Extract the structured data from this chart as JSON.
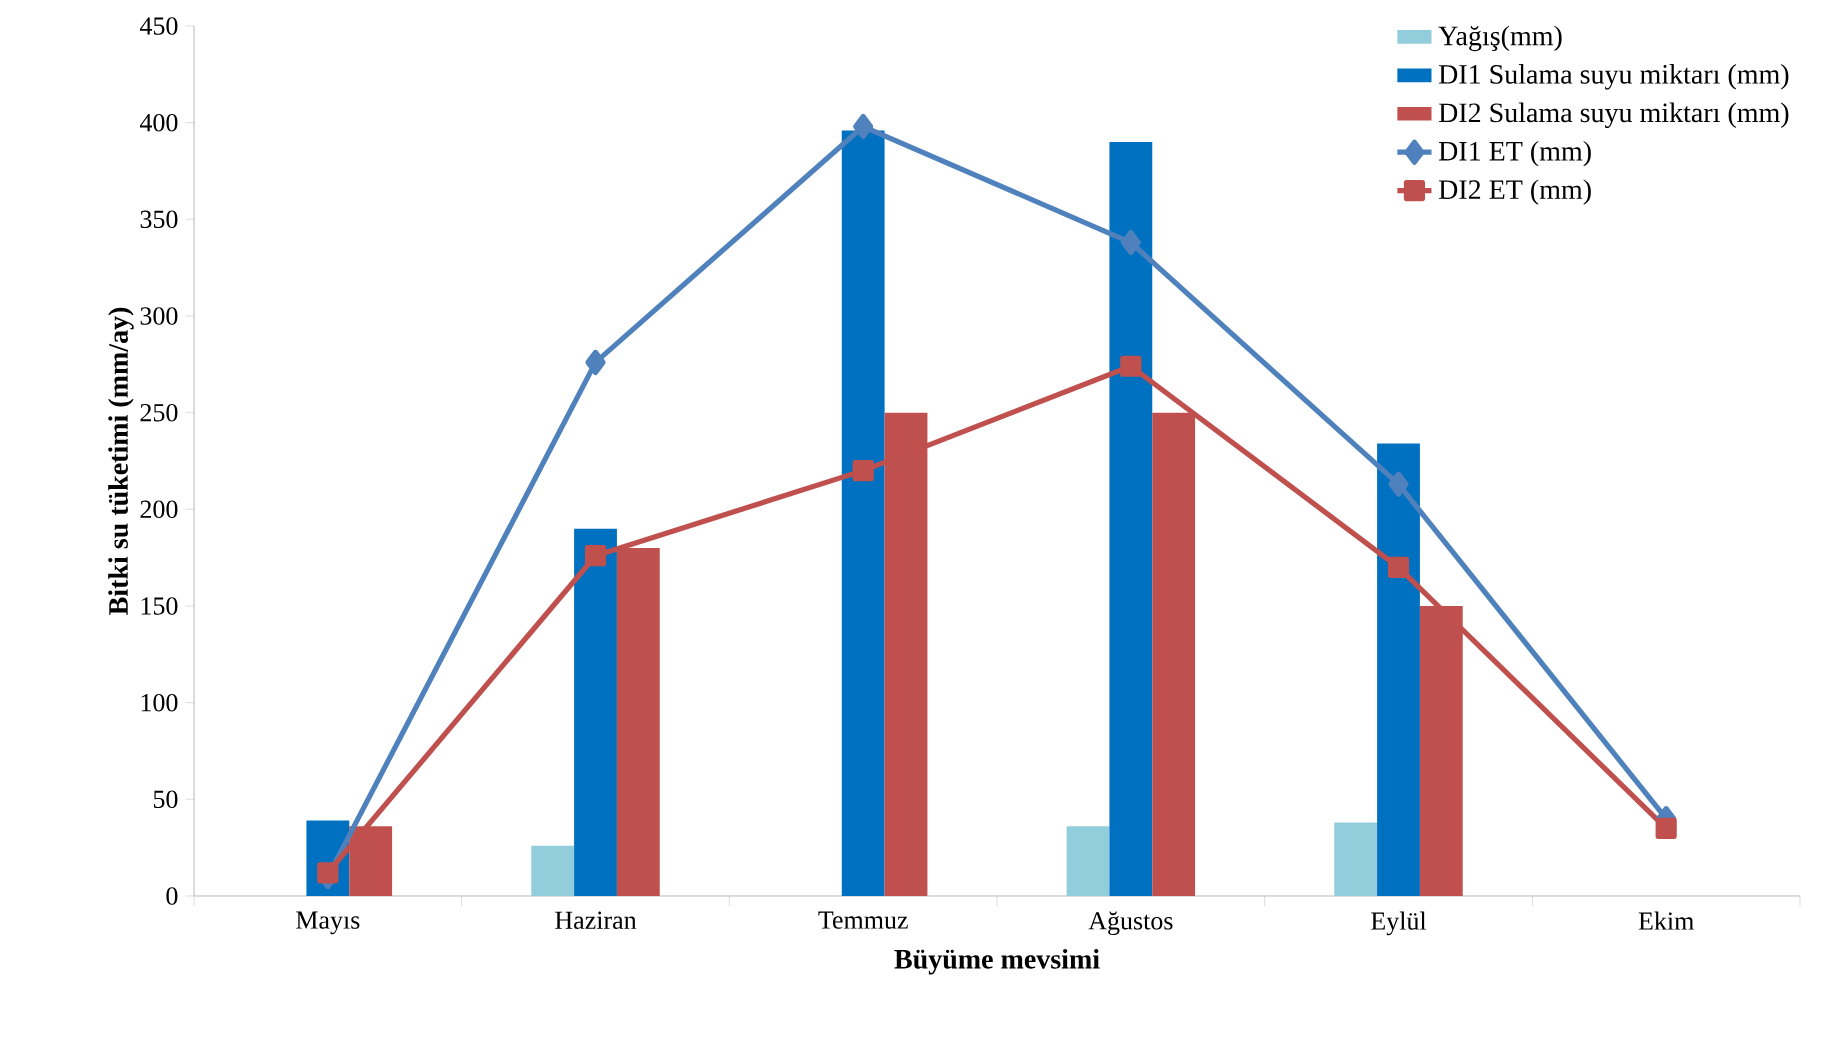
{
  "chart_data": {
    "type": "bar",
    "xlabel": "Büyüme mevsimi",
    "ylabel": "Bitki su tüketimi (mm/ay)",
    "categories": [
      "Mayıs",
      "Haziran",
      "Temmuz",
      "Ağustos",
      "Eylül",
      "Ekim"
    ],
    "ylim": [
      0,
      450
    ],
    "yticks": [
      0,
      50,
      100,
      150,
      200,
      250,
      300,
      350,
      400,
      450
    ],
    "legend": "top right",
    "series": [
      {
        "name": "Yağış(mm)",
        "color": "#92cddc",
        "values": [
          0,
          26,
          0,
          36,
          38,
          0
        ]
      },
      {
        "name": "DI1 Sulama suyu miktarı (mm)",
        "color": "#0070c0",
        "values": [
          39,
          190,
          396,
          390,
          234,
          0
        ]
      },
      {
        "name": "DI2 Sulama suyu miktarı (mm)",
        "color": "#c0504d",
        "values": [
          36,
          180,
          250,
          250,
          150,
          0
        ]
      },
      {
        "name": "DI1 ET (mm)",
        "type": "line",
        "marker": "diamond",
        "color": "#4f81bd",
        "values": [
          10,
          276,
          398,
          338,
          213,
          40
        ]
      },
      {
        "name": "DI2 ET (mm)",
        "type": "line",
        "marker": "square",
        "color": "#c0504d",
        "values": [
          12,
          176,
          220,
          274,
          170,
          35
        ]
      }
    ]
  }
}
